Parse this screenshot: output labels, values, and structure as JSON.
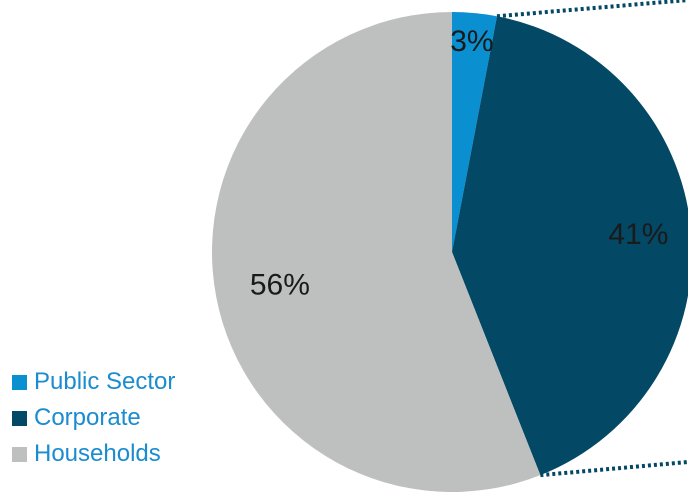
{
  "chart_data": {
    "type": "pie",
    "title": "",
    "slices": [
      {
        "label": "Public Sector",
        "value": 3,
        "display": "3%",
        "color": "#0a8fd0"
      },
      {
        "label": "Corporate",
        "value": 41,
        "display": "41%",
        "color": "#034966"
      },
      {
        "label": "Households",
        "value": 56,
        "display": "56%",
        "color": "#bebfbf"
      }
    ],
    "start_angle_deg": 0,
    "direction": "clockwise",
    "legend_position": "bottom-left",
    "label_color": "#1a1a1a",
    "legend_text_color": "#1a8ccf",
    "connector_style": "dotted",
    "connector_color": "#034966"
  }
}
